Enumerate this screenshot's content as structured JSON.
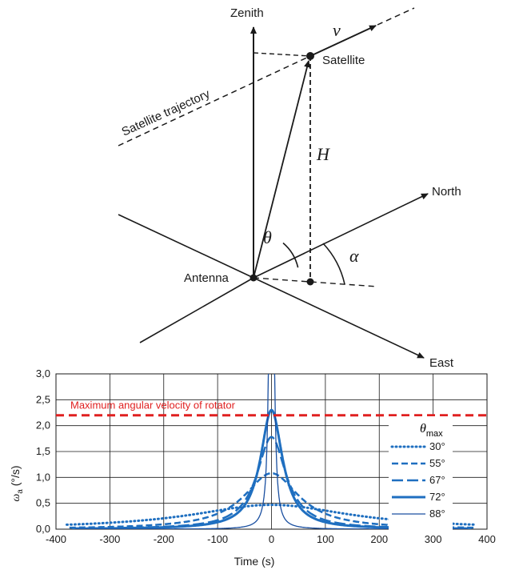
{
  "diagram": {
    "labels": {
      "zenith": "Zenith",
      "satellite": "Satellite",
      "trajectory": "Satellite trajectory",
      "north": "North",
      "east": "East",
      "antenna": "Antenna"
    },
    "symbols": {
      "velocity": "v",
      "height": "H",
      "elevation": "θ",
      "azimuth": "α"
    }
  },
  "chart_data": {
    "type": "line",
    "xlabel": "Time (s)",
    "ylabel": "ω",
    "ylabel_sub": "a",
    "ylabel_unit": " (°/s)",
    "xlim": [
      -400,
      400
    ],
    "ylim": [
      0,
      3
    ],
    "xticks": [
      "-400",
      "-300",
      "-200",
      "-100",
      "0",
      "100",
      "200",
      "300",
      "400"
    ],
    "yticks": [
      "0,0",
      "0,5",
      "1,0",
      "1,5",
      "2,0",
      "2,5",
      "3,0"
    ],
    "grid": true,
    "legend_title": "θ",
    "legend_title_sub": "max",
    "legend_placement": "right",
    "threshold": {
      "value": 2.2,
      "label": "Maximum angular velocity of rotator",
      "color": "#e02020"
    },
    "series": [
      {
        "name": "30°",
        "peak": 0.47,
        "tau": 180,
        "xrange": [
          -380,
          380
        ],
        "style": "dotted",
        "color": "#1f6fc0"
      },
      {
        "name": "55°",
        "peak": 1.08,
        "tau": 62,
        "xrange": [
          -375,
          375
        ],
        "style": "dashed",
        "color": "#1f6fc0"
      },
      {
        "name": "67°",
        "peak": 1.78,
        "tau": 33,
        "xrange": [
          -370,
          370
        ],
        "style": "longdash",
        "color": "#1f6fc0"
      },
      {
        "name": "72°",
        "peak": 2.3,
        "tau": 25,
        "xrange": [
          -370,
          370
        ],
        "style": "solid-thick",
        "color": "#1f6fc0"
      },
      {
        "name": "88°",
        "peak": 20,
        "tau": 2.5,
        "xrange": [
          -365,
          365
        ],
        "style": "solid-thin",
        "color": "#1a4fa0"
      }
    ]
  }
}
